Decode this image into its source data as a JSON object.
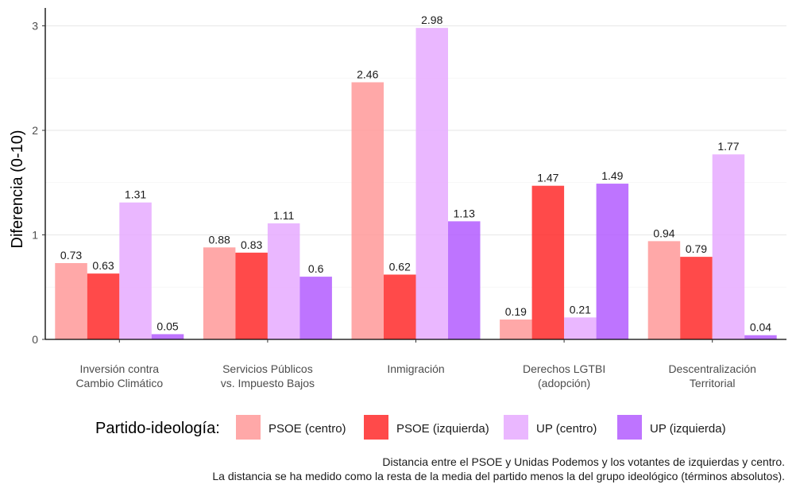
{
  "chart_data": {
    "type": "bar",
    "ylabel": "Diferencia (0-10)",
    "ylim": [
      0,
      3.15
    ],
    "yticks": [
      0,
      1,
      2,
      3
    ],
    "grid": true,
    "legend_position": "bottom",
    "categories": [
      [
        "Inversión contra",
        "Cambio Climático"
      ],
      [
        "Servicios Públicos",
        "vs. Impuesto Bajos"
      ],
      [
        "Inmigración"
      ],
      [
        "Derechos LGTBI",
        "(adopción)"
      ],
      [
        "Descentralización",
        "Territorial"
      ]
    ],
    "series": [
      {
        "name": "PSOE (centro)",
        "color": "#ff9999",
        "values": [
          0.73,
          0.88,
          2.46,
          0.19,
          0.94
        ],
        "labels": [
          "0.73",
          "0.88",
          "2.46",
          "0.19",
          "0.94"
        ]
      },
      {
        "name": "PSOE (izquierda)",
        "color": "#ff2a2a",
        "values": [
          0.63,
          0.83,
          0.62,
          1.47,
          0.79
        ],
        "labels": [
          "0.63",
          "0.83",
          "0.62",
          "1.47",
          "0.79"
        ]
      },
      {
        "name": "UP (centro)",
        "color": "#e6aaff",
        "values": [
          1.31,
          1.11,
          2.98,
          0.21,
          1.77
        ],
        "labels": [
          "1.31",
          "1.11",
          "2.98",
          "0.21",
          "1.77"
        ]
      },
      {
        "name": "UP (izquierda)",
        "color": "#b35cff",
        "values": [
          0.05,
          0.6,
          1.13,
          1.49,
          0.04
        ],
        "labels": [
          "0.05",
          "0.6",
          "1.13",
          "1.49",
          "0.04"
        ]
      }
    ],
    "legend_title": "Partido-ideología:",
    "caption": [
      "Distancia entre el PSOE y Unidas Podemos y los votantes de izquierdas y centro.",
      "La distancia se ha medido como la resta de la media del partido menos la del grupo ideológico (términos absolutos)."
    ]
  }
}
